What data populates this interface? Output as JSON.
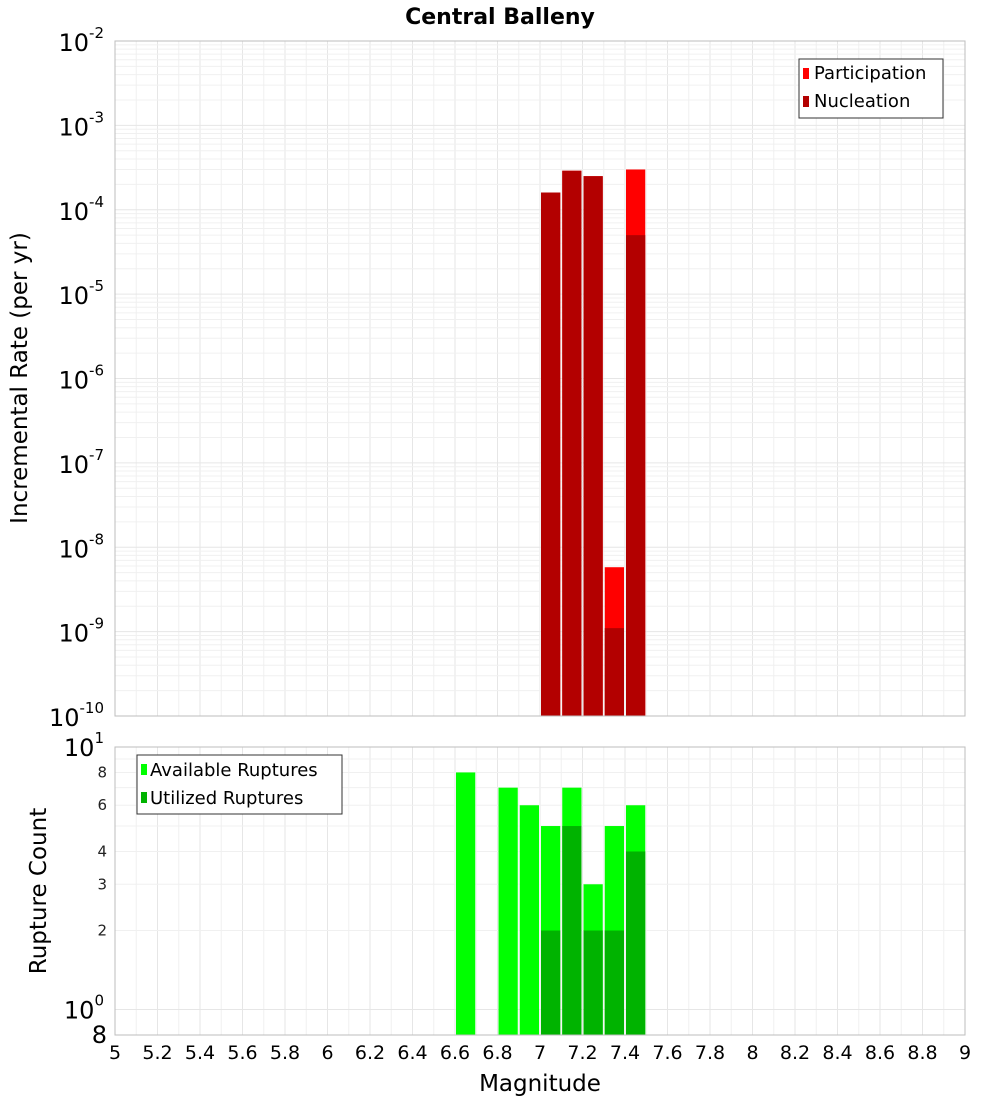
{
  "chart_data": [
    {
      "type": "bar",
      "title": "Central Balleny",
      "xlabel": "Magnitude",
      "ylabel": "Incremental Rate (per yr)",
      "yscale": "log",
      "ylim": [
        1e-10,
        0.01
      ],
      "xlim": [
        5,
        9
      ],
      "grid": true,
      "legend_position": "top-right",
      "x": [
        7.05,
        7.15,
        7.25,
        7.35,
        7.45
      ],
      "series": [
        {
          "name": "Participation",
          "color": "#ff0000",
          "values": [
            0.00016,
            0.00029,
            0.00025,
            5.8e-09,
            0.0003
          ]
        },
        {
          "name": "Nucleation",
          "color": "#b30000",
          "values": [
            0.00016,
            0.00029,
            0.00025,
            1.1e-09,
            5e-05
          ]
        }
      ]
    },
    {
      "type": "bar",
      "xlabel": "Magnitude",
      "ylabel": "Rupture Count",
      "yscale": "log",
      "ylim": [
        0.8,
        10
      ],
      "xlim": [
        5,
        9
      ],
      "grid": true,
      "legend_position": "top-left",
      "x": [
        6.65,
        6.85,
        6.95,
        7.05,
        7.15,
        7.25,
        7.35,
        7.45
      ],
      "series": [
        {
          "name": "Available Ruptures",
          "color": "#00ff00",
          "values": [
            8,
            7,
            6,
            5,
            7,
            3,
            5,
            6
          ]
        },
        {
          "name": "Utilized Ruptures",
          "color": "#00b300",
          "values": [
            0,
            0,
            0,
            2,
            5,
            2,
            2,
            4
          ]
        }
      ]
    }
  ],
  "axis": {
    "x_ticks": [
      "5",
      "5.2",
      "5.4",
      "5.6",
      "5.8",
      "6",
      "6.2",
      "6.4",
      "6.6",
      "6.8",
      "7",
      "7.2",
      "7.4",
      "7.6",
      "7.8",
      "8",
      "8.2",
      "8.4",
      "8.6",
      "8.8",
      "9"
    ],
    "top_y_ticks": [
      {
        "base": "10",
        "exp": "-2"
      },
      {
        "base": "10",
        "exp": "-3"
      },
      {
        "base": "10",
        "exp": "-4"
      },
      {
        "base": "10",
        "exp": "-5"
      },
      {
        "base": "10",
        "exp": "-6"
      },
      {
        "base": "10",
        "exp": "-7"
      },
      {
        "base": "10",
        "exp": "-8"
      },
      {
        "base": "10",
        "exp": "-9"
      },
      {
        "base": "10",
        "exp": "-10"
      }
    ],
    "bottom_y_major": [
      {
        "base": "10",
        "exp": "1"
      },
      {
        "base": "10",
        "exp": "0"
      }
    ],
    "bottom_y_minor": [
      "8",
      "6",
      "4",
      "3",
      "2"
    ],
    "bottom_y_bottom_label": "8"
  }
}
